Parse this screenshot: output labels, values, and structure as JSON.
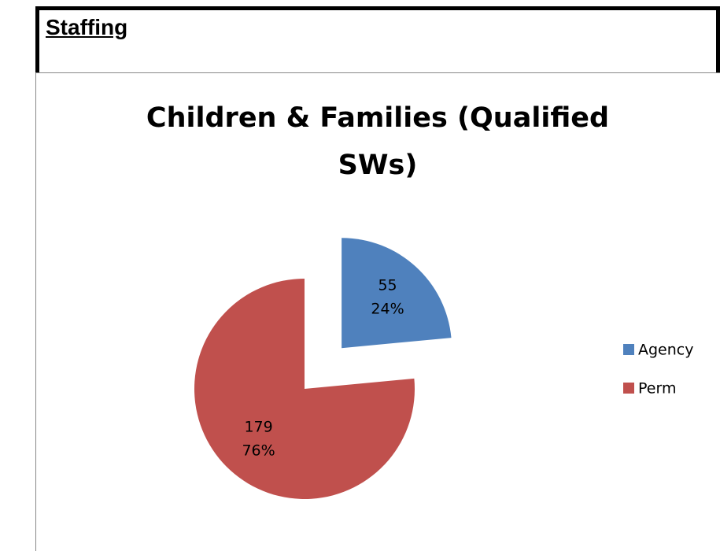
{
  "header": {
    "title": "Staffing"
  },
  "chart_data": {
    "type": "pie",
    "title": "Children & Families (Qualified SWs)",
    "categories": [
      "Agency",
      "Perm"
    ],
    "values": [
      55,
      179
    ],
    "percent_labels": [
      "24%",
      "76%"
    ],
    "colors": [
      "#4f81bd",
      "#c0504d"
    ],
    "legend": "right"
  }
}
